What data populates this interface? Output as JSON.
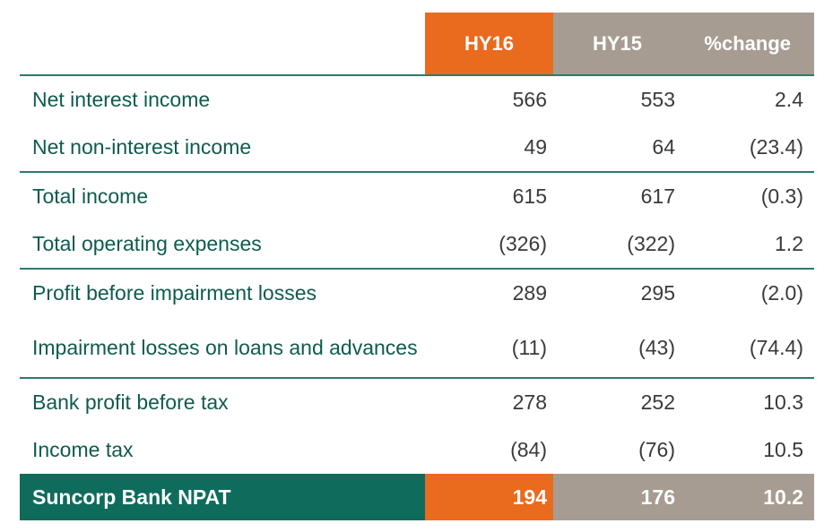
{
  "header": {
    "col1": "HY16",
    "col2": "HY15",
    "col3": "%change"
  },
  "rows": [
    {
      "label": "Net interest income",
      "hy16": "566",
      "hy15": "553",
      "change": "2.4"
    },
    {
      "label": "Net non-interest income",
      "hy16": "49",
      "hy15": "64",
      "change": "(23.4)"
    },
    {
      "label": "Total income",
      "hy16": "615",
      "hy15": "617",
      "change": "(0.3)"
    },
    {
      "label": "Total operating expenses",
      "hy16": "(326)",
      "hy15": "(322)",
      "change": "1.2"
    },
    {
      "label": "Profit before impairment losses",
      "hy16": "289",
      "hy15": "295",
      "change": "(2.0)"
    },
    {
      "label": "Impairment losses on loans and advances",
      "hy16": "(11)",
      "hy15": "(43)",
      "change": "(74.4)"
    },
    {
      "label": "Bank profit before tax",
      "hy16": "278",
      "hy15": "252",
      "change": "10.3"
    },
    {
      "label": "Income tax",
      "hy16": "(84)",
      "hy15": "(76)",
      "change": "10.5"
    }
  ],
  "total": {
    "label": "Suncorp Bank NPAT",
    "hy16": "194",
    "hy15": "176",
    "change": "10.2"
  },
  "colors": {
    "orange": "#ea6a1e",
    "taupe": "#a79c92",
    "green": "#0f6b5c",
    "rule": "#2c7a6c"
  }
}
